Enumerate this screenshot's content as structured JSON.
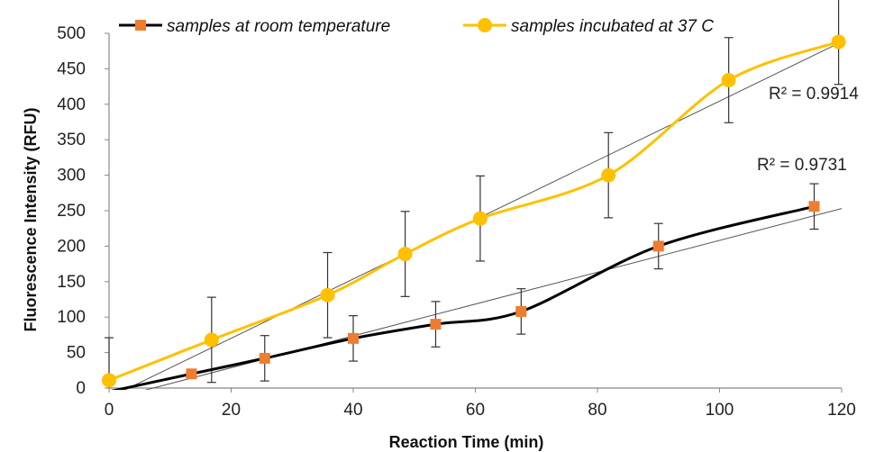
{
  "chart_data": {
    "type": "line",
    "xlabel": "Reaction Time (min)",
    "ylabel": "Fluorescence  Intensity (RFU)",
    "xlim": [
      0,
      120
    ],
    "ylim": [
      0,
      500
    ],
    "xticks": [
      "0",
      "20",
      "40",
      "60",
      "80",
      "100",
      "120"
    ],
    "yticks": [
      "0",
      "50",
      "100",
      "150",
      "200",
      "250",
      "300",
      "350",
      "400",
      "450",
      "500"
    ],
    "grid": false,
    "legend_position": "top",
    "series": [
      {
        "name": "samples at room temperature",
        "color": "#000000",
        "marker": "square",
        "marker_color": "#ED7D31",
        "x": [
          0,
          13.5,
          25.5,
          40,
          53.5,
          67.5,
          90,
          115.5
        ],
        "y": [
          -5,
          20,
          42,
          70,
          90,
          108,
          200,
          256
        ],
        "err": [
          0,
          0,
          32,
          32,
          32,
          32,
          32,
          32
        ],
        "trendline": {
          "r2_label": "R² = 0.9731",
          "x": [
            5,
            120
          ],
          "y": [
            -5,
            253
          ]
        }
      },
      {
        "name": "samples incubated at 37 C",
        "color": "#FFC000",
        "marker": "circle",
        "marker_color": "#FFC000",
        "x": [
          0,
          16.8,
          35.8,
          48.5,
          60.8,
          81.8,
          101.5,
          119.5
        ],
        "y": [
          11,
          68,
          131,
          189,
          239,
          300,
          434,
          488
        ],
        "err": [
          60,
          60,
          60,
          60,
          60,
          60,
          60,
          60
        ],
        "trendline": {
          "r2_label": "R² = 0.9914",
          "x": [
            2,
            120
          ],
          "y": [
            -5,
            488
          ]
        }
      }
    ]
  }
}
